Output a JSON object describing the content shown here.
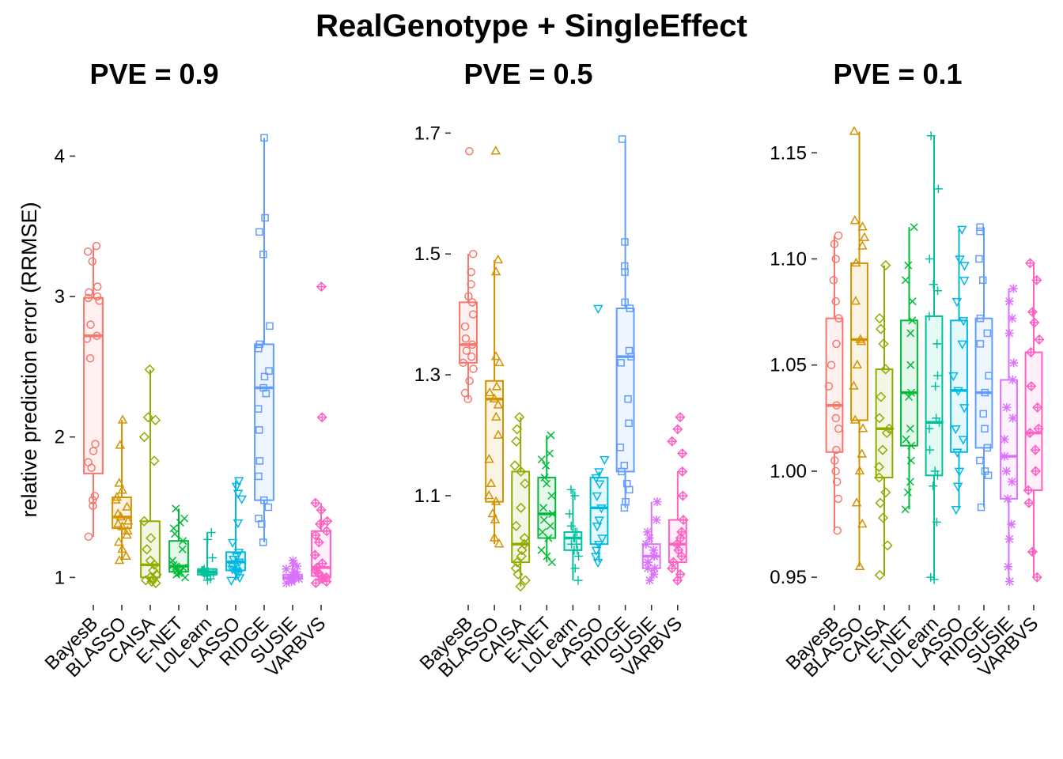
{
  "figure": {
    "title": "RealGenotype + SingleEffect",
    "ylabel": "relative prediction error (RRMSE)"
  },
  "methods": [
    "BayesB",
    "BLASSO",
    "CAISA",
    "E-NET",
    "L0Learn",
    "LASSO",
    "RIDGE",
    "SUSIE",
    "VARBVS"
  ],
  "colors": {
    "BayesB": "#F8766D",
    "BLASSO": "#D39200",
    "CAISA": "#93AA00",
    "E-NET": "#00BA38",
    "L0Learn": "#00C19F",
    "LASSO": "#00B9E3",
    "RIDGE": "#619CFF",
    "SUSIE": "#DB72FB",
    "VARBVS": "#FF61C3"
  },
  "shapes": {
    "BayesB": "circle",
    "BLASSO": "triangle",
    "CAISA": "diamond",
    "E-NET": "cross-x",
    "L0Learn": "plus",
    "LASSO": "triangle-down",
    "RIDGE": "square",
    "SUSIE": "asterisk",
    "VARBVS": "diamond-plus"
  },
  "chart_data": [
    {
      "type": "box",
      "title": "PVE = 0.9",
      "ylim": [
        0.85,
        4.25
      ],
      "yticks": [
        1,
        2,
        3,
        4
      ],
      "ytick_labels": [
        "1",
        "2",
        "3",
        "4"
      ],
      "boxes": [
        {
          "method": "BayesB",
          "q1": 1.74,
          "median": 2.72,
          "q3": 2.99,
          "whisker_low": 1.29,
          "whisker_high": 3.36,
          "points": [
            3.36,
            3.32,
            3.25,
            3.07,
            3.03,
            3.0,
            2.99,
            2.97,
            2.8,
            2.72,
            2.7,
            2.56,
            1.95,
            1.9,
            1.82,
            1.78,
            1.58,
            1.55,
            1.51,
            1.29
          ]
        },
        {
          "method": "BLASSO",
          "q1": 1.35,
          "median": 1.43,
          "q3": 1.57,
          "whisker_low": 1.12,
          "whisker_high": 2.12,
          "points": [
            2.12,
            1.94,
            1.67,
            1.62,
            1.57,
            1.55,
            1.5,
            1.45,
            1.43,
            1.4,
            1.38,
            1.36,
            1.33,
            1.3,
            1.25,
            1.2,
            1.15,
            1.12
          ]
        },
        {
          "method": "CAISA",
          "q1": 1.0,
          "median": 1.09,
          "q3": 1.4,
          "whisker_low": 0.96,
          "whisker_high": 2.48,
          "points": [
            2.48,
            2.14,
            2.12,
            2.0,
            1.83,
            1.4,
            1.28,
            1.2,
            1.12,
            1.09,
            1.05,
            1.02,
            1.0,
            0.99,
            0.98,
            0.97,
            0.96
          ]
        },
        {
          "method": "E-NET",
          "q1": 1.04,
          "median": 1.08,
          "q3": 1.26,
          "whisker_low": 1.0,
          "whisker_high": 1.49,
          "points": [
            1.49,
            1.42,
            1.39,
            1.35,
            1.31,
            1.26,
            1.2,
            1.12,
            1.09,
            1.08,
            1.07,
            1.06,
            1.05,
            1.04,
            1.03,
            1.02,
            1.0
          ]
        },
        {
          "method": "L0Learn",
          "q1": 1.02,
          "median": 1.04,
          "q3": 1.06,
          "whisker_low": 0.98,
          "whisker_high": 1.32,
          "points": [
            1.32,
            1.27,
            1.14,
            1.06,
            1.05,
            1.05,
            1.04,
            1.04,
            1.04,
            1.03,
            1.03,
            1.02,
            1.02,
            1.01,
            0.99,
            0.98
          ]
        },
        {
          "method": "LASSO",
          "q1": 1.05,
          "median": 1.11,
          "q3": 1.18,
          "whisker_low": 0.98,
          "whisker_high": 1.69,
          "points": [
            1.69,
            1.65,
            1.6,
            1.56,
            1.39,
            1.25,
            1.18,
            1.15,
            1.13,
            1.11,
            1.1,
            1.08,
            1.06,
            1.05,
            1.04,
            1.02,
            1.0,
            0.98
          ]
        },
        {
          "method": "RIDGE",
          "q1": 1.55,
          "median": 2.35,
          "q3": 2.66,
          "whisker_low": 1.25,
          "whisker_high": 4.13,
          "points": [
            4.13,
            3.56,
            3.46,
            3.3,
            2.79,
            2.66,
            2.63,
            2.47,
            2.43,
            2.35,
            2.31,
            2.2,
            2.05,
            1.83,
            1.72,
            1.55,
            1.5,
            1.42,
            1.38,
            1.25
          ]
        },
        {
          "method": "SUSIE",
          "q1": 0.99,
          "median": 1.0,
          "q3": 1.02,
          "whisker_low": 0.96,
          "whisker_high": 1.12,
          "points": [
            1.12,
            1.1,
            1.08,
            1.06,
            1.04,
            1.03,
            1.02,
            1.01,
            1.0,
            1.0,
            0.99,
            0.99,
            0.98,
            0.97,
            0.96
          ]
        },
        {
          "method": "VARBVS",
          "q1": 1.01,
          "median": 1.07,
          "q3": 1.33,
          "whisker_low": 0.96,
          "whisker_high": 1.53,
          "points": [
            3.07,
            2.14,
            1.53,
            1.48,
            1.4,
            1.38,
            1.33,
            1.3,
            1.25,
            1.16,
            1.1,
            1.07,
            1.05,
            1.03,
            1.01,
            1.0,
            0.99,
            0.97,
            0.96
          ]
        }
      ]
    },
    {
      "type": "box",
      "title": "PVE = 0.5",
      "ylim": [
        0.93,
        1.72
      ],
      "yticks": [
        1.1,
        1.3,
        1.5,
        1.7
      ],
      "ytick_labels": [
        "1.1",
        "1.3",
        "1.5",
        "1.7"
      ],
      "boxes": [
        {
          "method": "BayesB",
          "q1": 1.32,
          "median": 1.35,
          "q3": 1.42,
          "whisker_low": 1.26,
          "whisker_high": 1.5,
          "points": [
            1.67,
            1.5,
            1.47,
            1.45,
            1.43,
            1.42,
            1.4,
            1.38,
            1.36,
            1.35,
            1.34,
            1.33,
            1.32,
            1.31,
            1.29,
            1.27,
            1.26
          ]
        },
        {
          "method": "BLASSO",
          "q1": 1.09,
          "median": 1.26,
          "q3": 1.29,
          "whisker_low": 1.02,
          "whisker_high": 1.49,
          "points": [
            1.67,
            1.49,
            1.47,
            1.33,
            1.32,
            1.28,
            1.27,
            1.26,
            1.25,
            1.23,
            1.2,
            1.16,
            1.12,
            1.1,
            1.09,
            1.07,
            1.06,
            1.03,
            1.02
          ]
        },
        {
          "method": "CAISA",
          "q1": 0.99,
          "median": 1.02,
          "q3": 1.14,
          "whisker_low": 0.95,
          "whisker_high": 1.23,
          "points": [
            1.23,
            1.21,
            1.19,
            1.15,
            1.14,
            1.12,
            1.08,
            1.05,
            1.03,
            1.02,
            1.01,
            1.0,
            0.99,
            0.98,
            0.97,
            0.96,
            0.95
          ]
        },
        {
          "method": "E-NET",
          "q1": 1.03,
          "median": 1.07,
          "q3": 1.13,
          "whisker_low": 0.99,
          "whisker_high": 1.2,
          "points": [
            1.2,
            1.17,
            1.16,
            1.15,
            1.13,
            1.12,
            1.1,
            1.08,
            1.07,
            1.06,
            1.05,
            1.04,
            1.03,
            1.01,
            1.0,
            0.99
          ]
        },
        {
          "method": "L0Learn",
          "q1": 1.01,
          "median": 1.03,
          "q3": 1.04,
          "whisker_low": 0.96,
          "whisker_high": 1.11,
          "points": [
            1.11,
            1.1,
            1.07,
            1.05,
            1.04,
            1.04,
            1.03,
            1.03,
            1.02,
            1.02,
            1.01,
            1.01,
            1.0,
            0.98,
            0.96
          ]
        },
        {
          "method": "LASSO",
          "q1": 1.02,
          "median": 1.08,
          "q3": 1.13,
          "whisker_low": 0.99,
          "whisker_high": 1.14,
          "points": [
            1.41,
            1.16,
            1.14,
            1.13,
            1.12,
            1.1,
            1.08,
            1.06,
            1.05,
            1.03,
            1.02,
            1.01,
            1.0,
            0.99
          ]
        },
        {
          "method": "RIDGE",
          "q1": 1.14,
          "median": 1.33,
          "q3": 1.41,
          "whisker_low": 1.08,
          "whisker_high": 1.69,
          "points": [
            1.69,
            1.52,
            1.48,
            1.47,
            1.42,
            1.41,
            1.34,
            1.33,
            1.32,
            1.26,
            1.22,
            1.18,
            1.15,
            1.14,
            1.12,
            1.11,
            1.09,
            1.08
          ]
        },
        {
          "method": "SUSIE",
          "q1": 0.98,
          "median": 1.0,
          "q3": 1.02,
          "whisker_low": 0.96,
          "whisker_high": 1.09,
          "points": [
            1.09,
            1.06,
            1.04,
            1.03,
            1.02,
            1.01,
            1.0,
            1.0,
            0.99,
            0.99,
            0.98,
            0.98,
            0.97,
            0.96
          ]
        },
        {
          "method": "VARBVS",
          "q1": 0.99,
          "median": 1.02,
          "q3": 1.06,
          "whisker_low": 0.96,
          "whisker_high": 1.14,
          "points": [
            1.23,
            1.21,
            1.19,
            1.17,
            1.14,
            1.1,
            1.06,
            1.04,
            1.03,
            1.02,
            1.01,
            1.0,
            0.99,
            0.98,
            0.97,
            0.96
          ]
        }
      ]
    },
    {
      "type": "box",
      "title": "PVE = 0.1",
      "ylim": [
        0.94,
        1.165
      ],
      "yticks": [
        0.95,
        1.0,
        1.05,
        1.1,
        1.15
      ],
      "ytick_labels": [
        "0.95",
        "1.00",
        "1.05",
        "1.10",
        "1.15"
      ],
      "boxes": [
        {
          "method": "BayesB",
          "q1": 1.009,
          "median": 1.031,
          "q3": 1.072,
          "whisker_low": 0.972,
          "whisker_high": 1.111,
          "points": [
            1.111,
            1.107,
            1.1,
            1.09,
            1.08,
            1.072,
            1.06,
            1.05,
            1.04,
            1.031,
            1.025,
            1.02,
            1.01,
            1.005,
            1.0,
            0.995,
            0.987,
            0.972
          ]
        },
        {
          "method": "BLASSO",
          "q1": 1.024,
          "median": 1.062,
          "q3": 1.098,
          "whisker_low": 0.955,
          "whisker_high": 1.16,
          "points": [
            1.16,
            1.118,
            1.115,
            1.11,
            1.106,
            1.098,
            1.08,
            1.062,
            1.061,
            1.05,
            1.04,
            1.024,
            1.02,
            1.008,
            1.0,
            0.985,
            0.975,
            0.955
          ]
        },
        {
          "method": "CAISA",
          "q1": 0.997,
          "median": 1.02,
          "q3": 1.048,
          "whisker_low": 0.951,
          "whisker_high": 1.097,
          "points": [
            1.097,
            1.072,
            1.067,
            1.06,
            1.048,
            1.035,
            1.025,
            1.02,
            1.018,
            1.01,
            1.002,
            0.997,
            0.99,
            0.985,
            0.978,
            0.965,
            0.951
          ]
        },
        {
          "method": "E-NET",
          "q1": 1.012,
          "median": 1.037,
          "q3": 1.071,
          "whisker_low": 0.982,
          "whisker_high": 1.115,
          "points": [
            1.115,
            1.097,
            1.09,
            1.08,
            1.071,
            1.065,
            1.05,
            1.037,
            1.035,
            1.02,
            1.015,
            1.012,
            1.005,
            0.995,
            0.99,
            0.982
          ]
        },
        {
          "method": "L0Learn",
          "q1": 0.998,
          "median": 1.023,
          "q3": 1.073,
          "whisker_low": 0.949,
          "whisker_high": 1.158,
          "points": [
            1.158,
            1.133,
            1.1,
            1.088,
            1.085,
            1.073,
            1.06,
            1.045,
            1.04,
            1.025,
            1.023,
            1.02,
            1.01,
            1.0,
            0.998,
            0.993,
            0.976,
            0.95,
            0.949
          ]
        },
        {
          "method": "LASSO",
          "q1": 1.009,
          "median": 1.038,
          "q3": 1.071,
          "whisker_low": 0.982,
          "whisker_high": 1.114,
          "points": [
            1.114,
            1.1,
            1.097,
            1.09,
            1.08,
            1.071,
            1.06,
            1.045,
            1.038,
            1.03,
            1.02,
            1.015,
            1.009,
            1.0,
            0.993,
            0.982
          ]
        },
        {
          "method": "RIDGE",
          "q1": 1.011,
          "median": 1.037,
          "q3": 1.072,
          "whisker_low": 0.983,
          "whisker_high": 1.115,
          "points": [
            1.115,
            1.113,
            1.1,
            1.09,
            1.072,
            1.065,
            1.06,
            1.045,
            1.037,
            1.027,
            1.02,
            1.011,
            1.005,
            1.0,
            0.998,
            0.983
          ]
        },
        {
          "method": "SUSIE",
          "q1": 0.987,
          "median": 1.007,
          "q3": 1.043,
          "whisker_low": 0.948,
          "whisker_high": 1.086,
          "points": [
            1.086,
            1.08,
            1.072,
            1.065,
            1.051,
            1.043,
            1.03,
            1.025,
            1.015,
            1.007,
            1.0,
            0.995,
            0.987,
            0.975,
            0.968,
            0.955,
            0.948
          ]
        },
        {
          "method": "VARBVS",
          "q1": 0.991,
          "median": 1.018,
          "q3": 1.056,
          "whisker_low": 0.95,
          "whisker_high": 1.098,
          "points": [
            1.098,
            1.09,
            1.075,
            1.07,
            1.062,
            1.056,
            1.04,
            1.03,
            1.02,
            1.018,
            1.01,
            1.0,
            0.991,
            0.985,
            0.962,
            0.95
          ]
        }
      ]
    }
  ]
}
